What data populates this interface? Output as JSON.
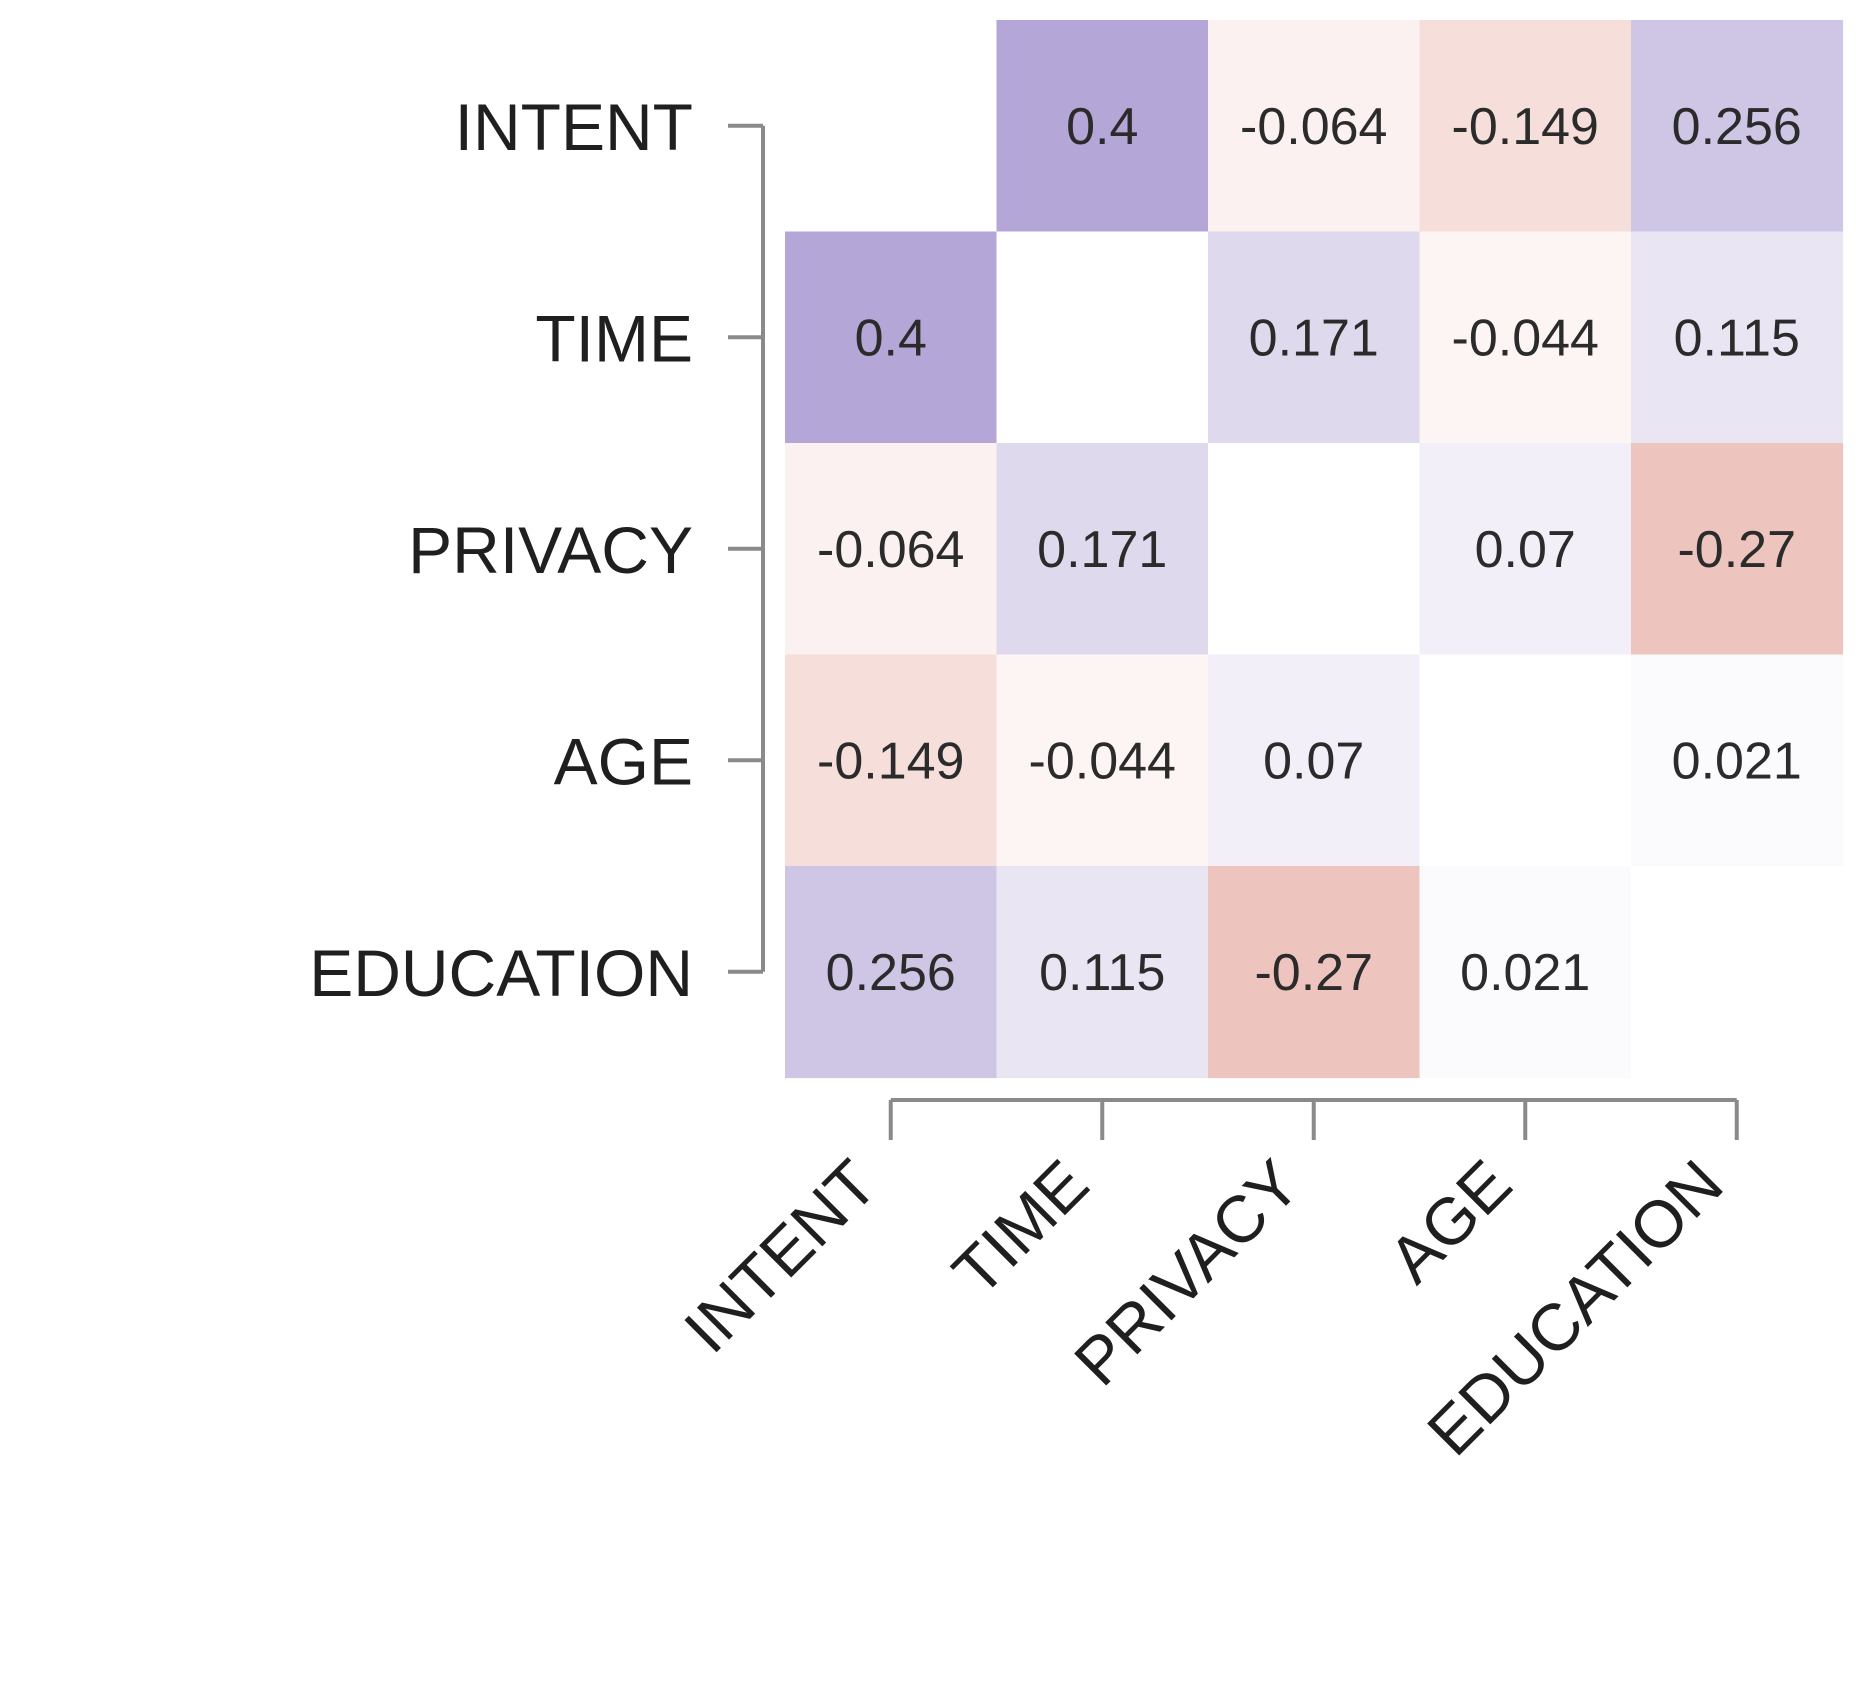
{
  "chart_data": {
    "type": "heatmap",
    "title": "",
    "variables": [
      "INTENT",
      "TIME",
      "PRIVACY",
      "AGE",
      "EDUCATION"
    ],
    "row_labels": [
      "INTENT",
      "TIME",
      "PRIVACY",
      "AGE",
      "EDUCATION"
    ],
    "col_labels": [
      "INTENT",
      "TIME",
      "PRIVACY",
      "AGE",
      "EDUCATION"
    ],
    "matrix": [
      [
        null,
        0.4,
        -0.064,
        -0.149,
        0.256
      ],
      [
        0.4,
        null,
        0.171,
        -0.044,
        0.115
      ],
      [
        -0.064,
        0.171,
        null,
        0.07,
        -0.27
      ],
      [
        -0.149,
        -0.044,
        0.07,
        null,
        0.021
      ],
      [
        0.256,
        0.115,
        -0.27,
        0.021,
        null
      ]
    ],
    "labels": [
      [
        "",
        "0.4",
        "-0.064",
        "-0.149",
        "0.256"
      ],
      [
        "0.4",
        "",
        "0.171",
        "-0.044",
        "0.115"
      ],
      [
        "-0.064",
        "0.171",
        "",
        "0.07",
        "-0.27"
      ],
      [
        "-0.149",
        "-0.044",
        "0.07",
        "",
        "0.021"
      ],
      [
        "0.256",
        "0.115",
        "-0.27",
        "0.021",
        ""
      ]
    ],
    "value_range": [
      -0.4,
      0.4
    ],
    "colors": {
      "positive": "#b4a6d6",
      "negative": "#e6a89f",
      "neutral": "#ffffff"
    },
    "diagonal": "blank",
    "grid": false,
    "legend": "none"
  }
}
